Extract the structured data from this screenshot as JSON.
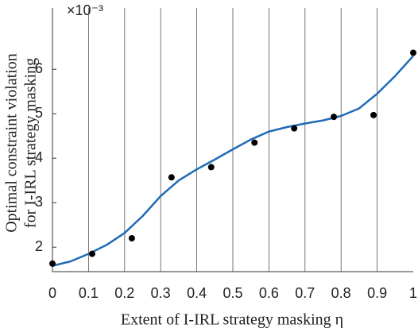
{
  "chart_data": {
    "type": "scatter-fit",
    "y_label_lines": [
      "Optimal constraint violation",
      "for I-IRL strategy masking"
    ],
    "x_label": "Extent of I-IRL strategy masking η",
    "y_multiplier": "×10⁻³",
    "x": [
      0,
      0.11,
      0.22,
      0.33,
      0.44,
      0.56,
      0.67,
      0.78,
      0.89,
      1
    ],
    "values": [
      1.63,
      1.85,
      2.2,
      3.57,
      3.8,
      4.35,
      4.67,
      4.93,
      4.97,
      6.37
    ],
    "point_color": "#000000",
    "fit": {
      "x": [
        0,
        0.05,
        0.1,
        0.15,
        0.2,
        0.25,
        0.3,
        0.35,
        0.4,
        0.45,
        0.5,
        0.55,
        0.6,
        0.65,
        0.7,
        0.75,
        0.8,
        0.85,
        0.9,
        0.95,
        1
      ],
      "values": [
        1.58,
        1.68,
        1.85,
        2.05,
        2.32,
        2.7,
        3.15,
        3.5,
        3.75,
        3.97,
        4.2,
        4.42,
        4.6,
        4.7,
        4.78,
        4.85,
        4.95,
        5.12,
        5.45,
        5.85,
        6.3
      ],
      "color": "#1f6bb5"
    },
    "xlim": [
      0,
      1
    ],
    "ylim": [
      1.45,
      6.95
    ],
    "xticks": [
      0,
      0.1,
      0.2,
      0.3,
      0.4,
      0.5,
      0.6,
      0.7,
      0.8,
      0.9,
      1
    ],
    "yticks": [
      2,
      3,
      4,
      5,
      6
    ],
    "grid": true
  }
}
